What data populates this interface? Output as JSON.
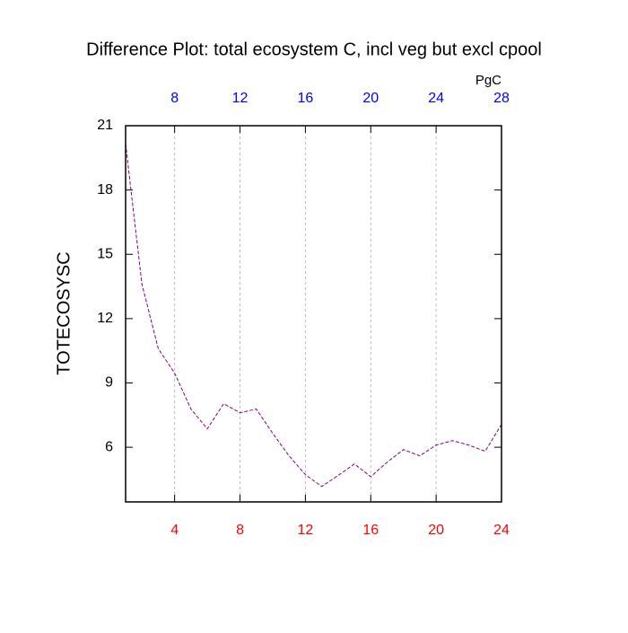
{
  "chart_data": {
    "type": "line",
    "title": "Difference Plot: total ecosystem C, incl veg but excl cpool",
    "units_label": "PgC",
    "y_label": "TOTECOSYSC",
    "x": [
      1,
      2,
      3,
      4,
      5,
      6,
      7,
      8,
      9,
      10,
      11,
      12,
      13,
      14,
      15,
      16,
      17,
      18,
      19,
      20,
      21,
      22,
      23,
      24
    ],
    "series": [
      {
        "color": "#800080",
        "values": [
          20.16,
          13.6,
          10.6,
          9.46,
          7.78,
          6.86,
          8.03,
          7.61,
          7.78,
          6.65,
          5.6,
          4.72,
          4.17,
          4.68,
          5.22,
          4.63,
          5.3,
          5.89,
          5.6,
          6.1,
          6.31,
          6.1,
          5.81,
          7.07
        ]
      }
    ],
    "xlim": [
      1,
      24
    ],
    "xticks": [
      4,
      8,
      12,
      16,
      20,
      24
    ],
    "xtick_color": "#ff0000",
    "x2lim": [
      5,
      28
    ],
    "x2ticks": [
      8,
      12,
      16,
      20,
      24,
      28
    ],
    "x2tick_color": "#0000ff",
    "ylim": [
      3.45,
      21
    ],
    "yticks": [
      6,
      9,
      12,
      15,
      18,
      21
    ],
    "grid": true
  }
}
